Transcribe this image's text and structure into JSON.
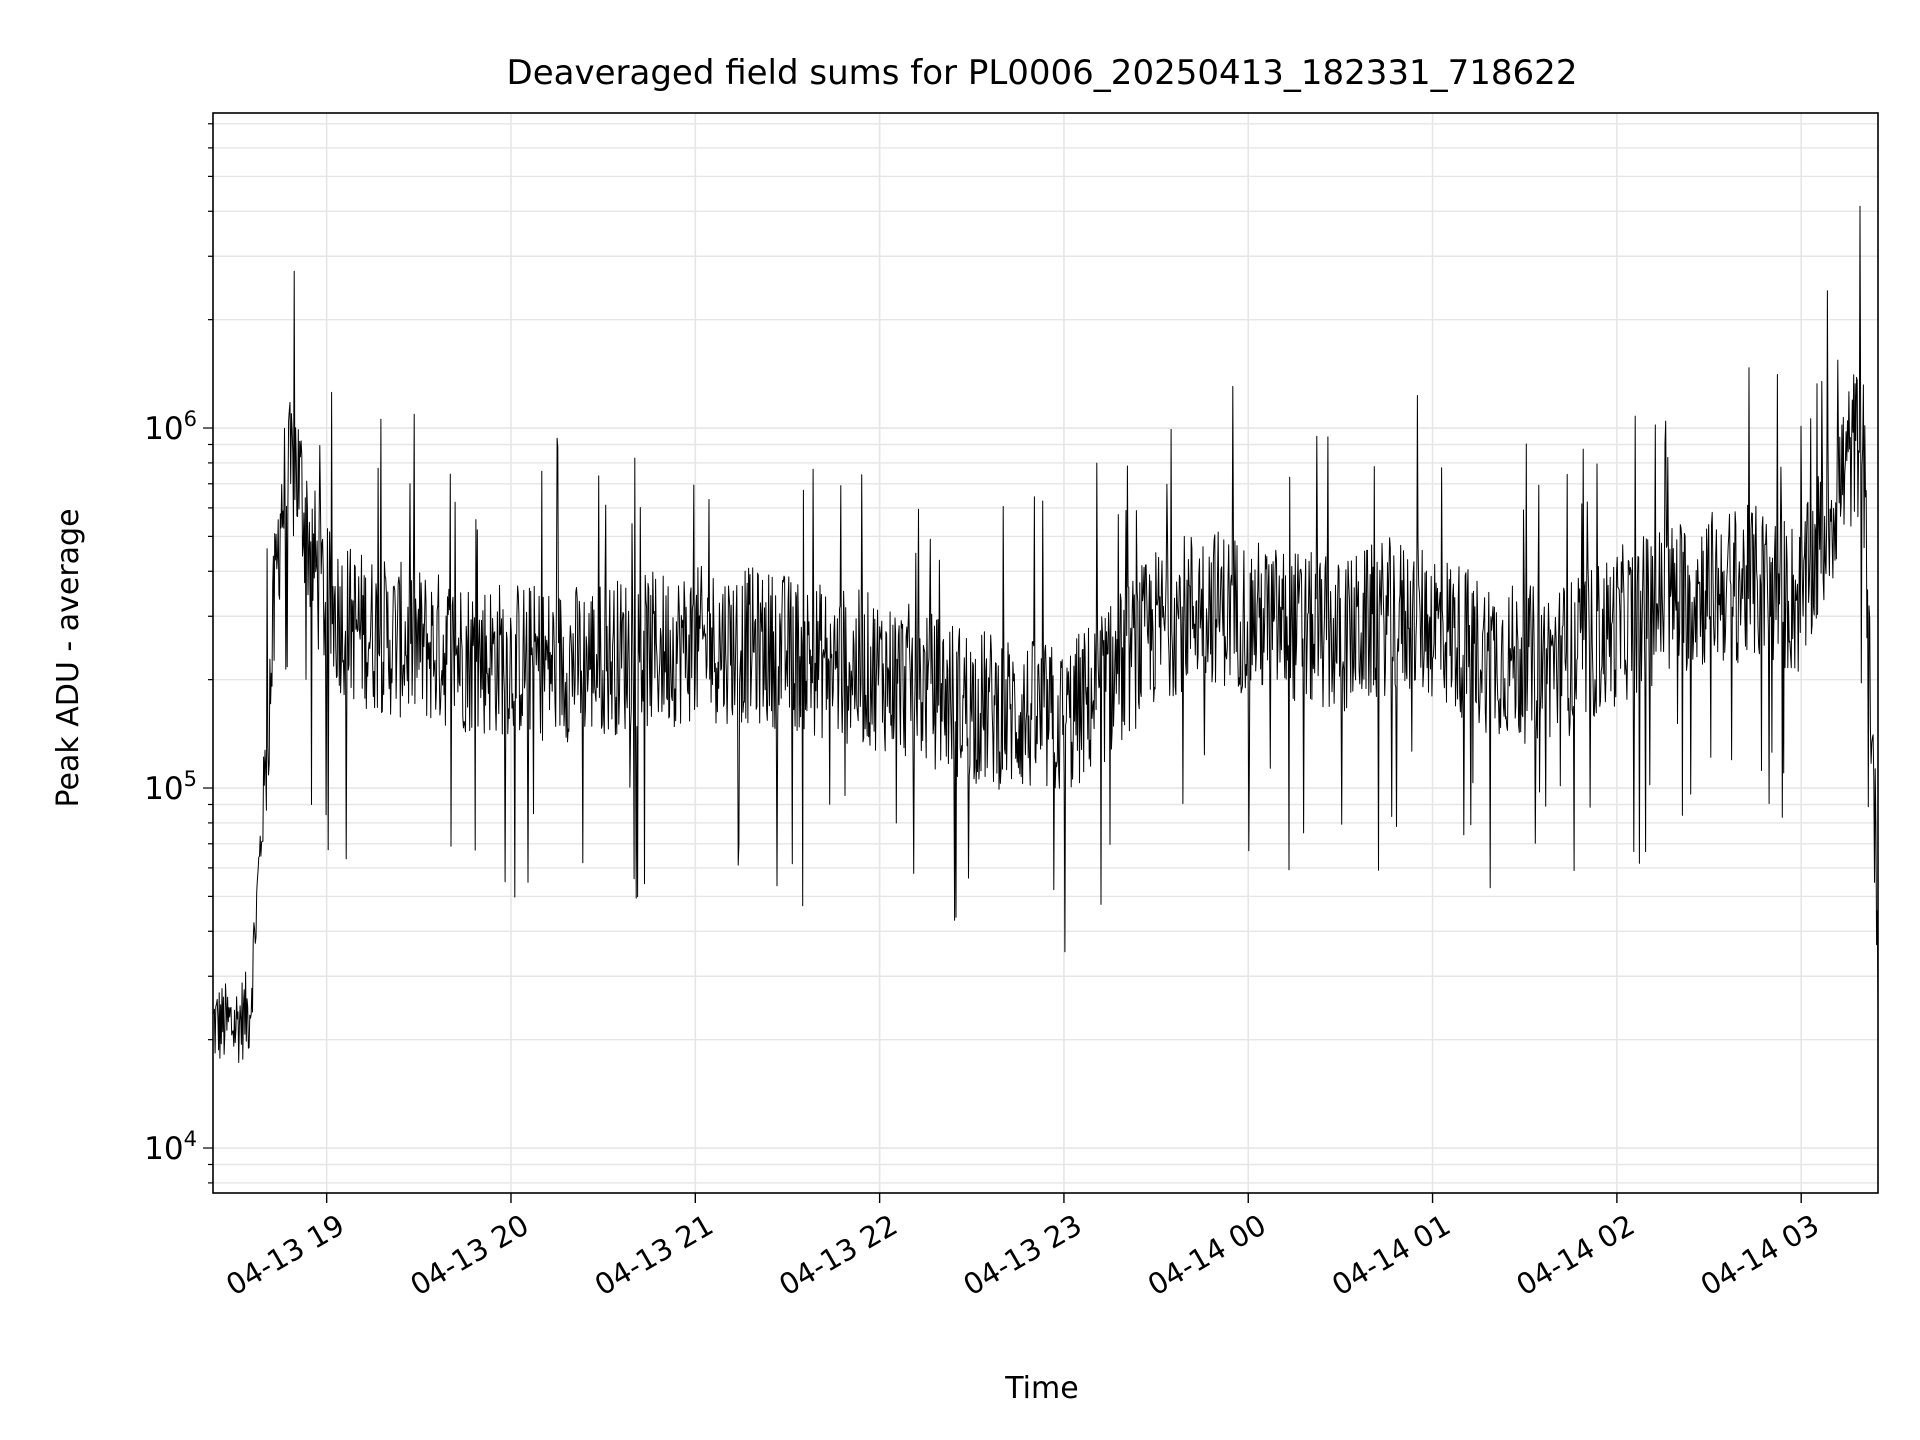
{
  "chart_data": {
    "type": "line",
    "title": "Deaveraged field sums for PL0006_20250413_182331_718622",
    "xlabel": "Time",
    "ylabel": "Peak ADU - average",
    "yscale": "log",
    "ylim": [
      7500,
      7500000
    ],
    "xlim": [
      "2025-04-13 18:23",
      "2025-04-14 03:25"
    ],
    "grid": true,
    "line_color": "#000000",
    "grid_color": "#e6e6e6",
    "x_ticks": [
      {
        "label": "04-13 19",
        "t": "2025-04-13 19:00"
      },
      {
        "label": "04-13 20",
        "t": "2025-04-13 20:00"
      },
      {
        "label": "04-13 21",
        "t": "2025-04-13 21:00"
      },
      {
        "label": "04-13 22",
        "t": "2025-04-13 22:00"
      },
      {
        "label": "04-13 23",
        "t": "2025-04-13 23:00"
      },
      {
        "label": "04-14 00",
        "t": "2025-04-14 00:00"
      },
      {
        "label": "04-14 01",
        "t": "2025-04-14 01:00"
      },
      {
        "label": "04-14 02",
        "t": "2025-04-14 02:00"
      },
      {
        "label": "04-14 03",
        "t": "2025-04-14 03:00"
      }
    ],
    "y_ticks": [
      {
        "base": "10",
        "exp": "4",
        "value": 10000
      },
      {
        "base": "10",
        "exp": "5",
        "value": 100000
      },
      {
        "base": "10",
        "exp": "6",
        "value": 1000000
      }
    ],
    "series": [
      {
        "x": [
          "2025-04-13 18:23",
          "2025-04-13 18:30",
          "2025-04-13 18:35",
          "2025-04-13 18:40",
          "2025-04-13 18:45",
          "2025-04-13 18:50",
          "2025-04-13 18:55",
          "2025-04-13 19:00",
          "2025-04-13 19:10",
          "2025-04-13 19:20",
          "2025-04-13 19:30",
          "2025-04-13 19:40",
          "2025-04-13 19:50",
          "2025-04-13 20:00",
          "2025-04-13 20:15",
          "2025-04-13 20:30",
          "2025-04-13 20:45",
          "2025-04-13 21:00",
          "2025-04-13 21:15",
          "2025-04-13 21:30",
          "2025-04-13 21:45",
          "2025-04-13 22:00",
          "2025-04-13 22:15",
          "2025-04-13 22:30",
          "2025-04-13 22:45",
          "2025-04-13 23:00",
          "2025-04-13 23:15",
          "2025-04-13 23:30",
          "2025-04-13 23:45",
          "2025-04-14 00:00",
          "2025-04-14 00:15",
          "2025-04-14 00:30",
          "2025-04-14 00:45",
          "2025-04-14 01:00",
          "2025-04-14 01:15",
          "2025-04-14 01:30",
          "2025-04-14 01:45",
          "2025-04-14 02:00",
          "2025-04-14 02:15",
          "2025-04-14 02:30",
          "2025-04-14 02:45",
          "2025-04-14 03:00",
          "2025-04-14 03:10",
          "2025-04-14 03:15",
          "2025-04-14 03:20",
          "2025-04-14 03:25"
        ],
        "y": [
          22000,
          22000,
          24000,
          110000,
          600000,
          800000,
          450000,
          320000,
          280000,
          260000,
          250000,
          240000,
          230000,
          230000,
          220000,
          230000,
          240000,
          250000,
          250000,
          240000,
          220000,
          210000,
          190000,
          170000,
          160000,
          150000,
          200000,
          280000,
          330000,
          300000,
          280000,
          260000,
          300000,
          290000,
          240000,
          220000,
          230000,
          280000,
          330000,
          360000,
          370000,
          330000,
          600000,
          800000,
          1000000,
          40000
        ]
      }
    ]
  }
}
